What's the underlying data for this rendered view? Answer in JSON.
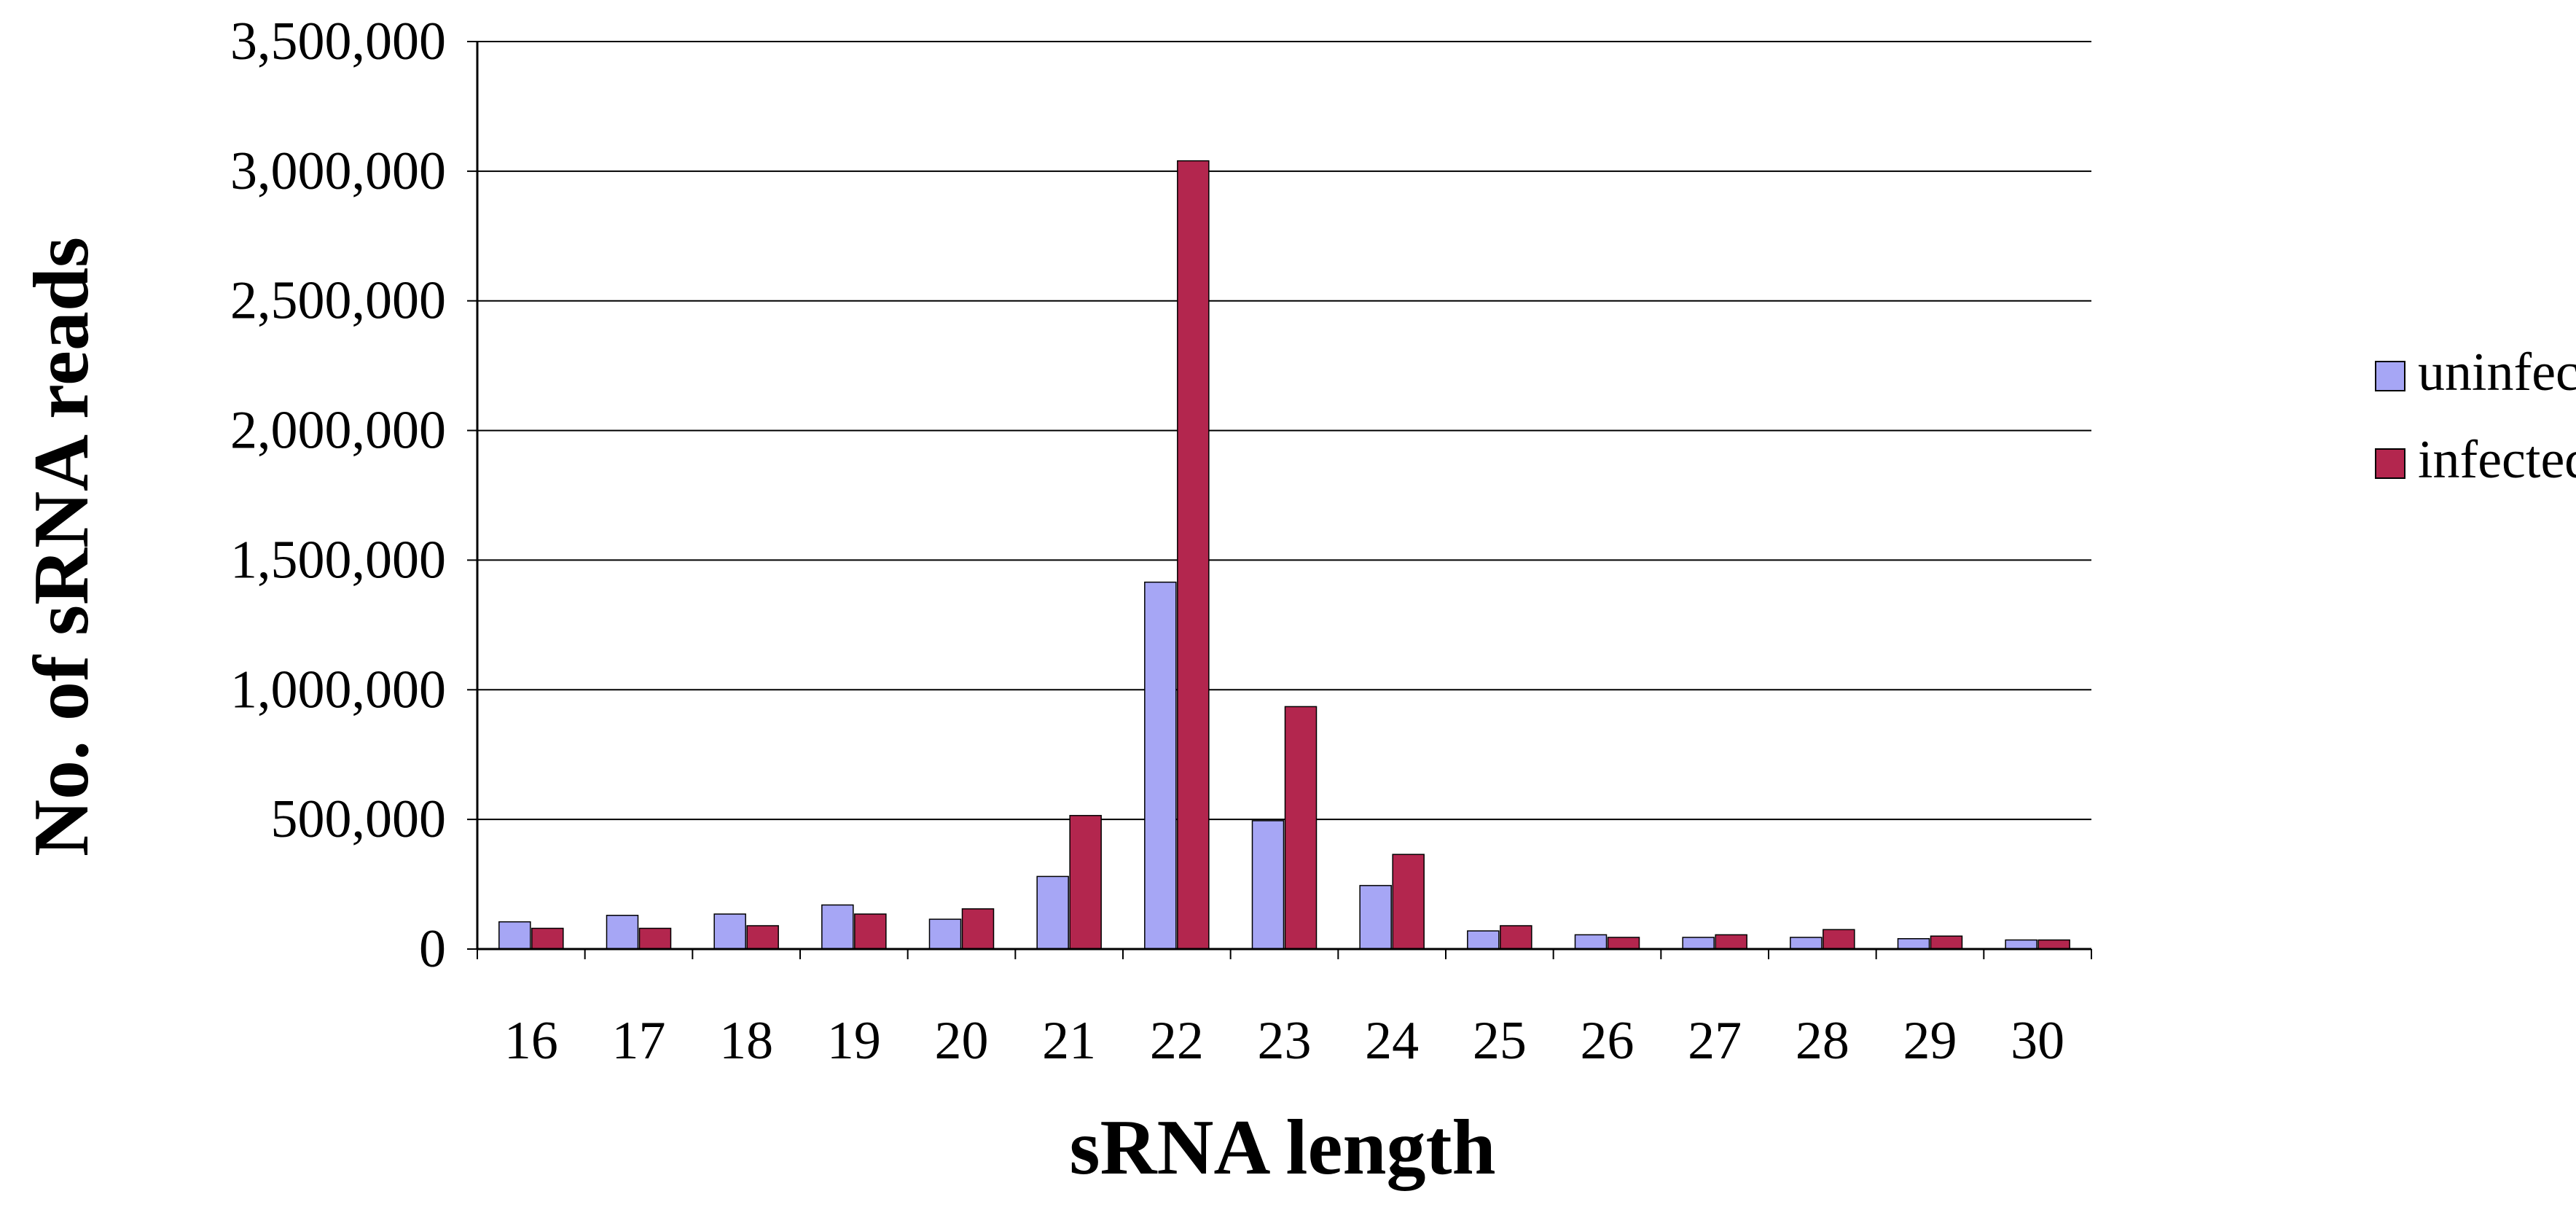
{
  "chart_data": {
    "type": "bar",
    "xlabel": "sRNA length",
    "ylabel": "No. of sRNA reads",
    "categories": [
      "16",
      "17",
      "18",
      "19",
      "20",
      "21",
      "22",
      "23",
      "24",
      "25",
      "26",
      "27",
      "28",
      "29",
      "30"
    ],
    "series": [
      {
        "name": "uninfected",
        "color": "#a6a6f5",
        "values": [
          105000,
          130000,
          135000,
          170000,
          115000,
          280000,
          1415000,
          495000,
          245000,
          70000,
          55000,
          45000,
          45000,
          40000,
          35000
        ]
      },
      {
        "name": "infected",
        "color": "#b3264e",
        "values": [
          80000,
          80000,
          90000,
          135000,
          155000,
          515000,
          3040000,
          935000,
          365000,
          90000,
          45000,
          55000,
          75000,
          50000,
          35000
        ]
      }
    ],
    "ylim": [
      0,
      3500000
    ],
    "yticks": [
      0,
      500000,
      1000000,
      1500000,
      2000000,
      2500000,
      3000000,
      3500000
    ],
    "ytick_labels": [
      "0",
      "500,000",
      "1,000,000",
      "1,500,000",
      "2,000,000",
      "2,500,000",
      "3,000,000",
      "3,500,000"
    ],
    "grid": true,
    "legend": "right"
  }
}
